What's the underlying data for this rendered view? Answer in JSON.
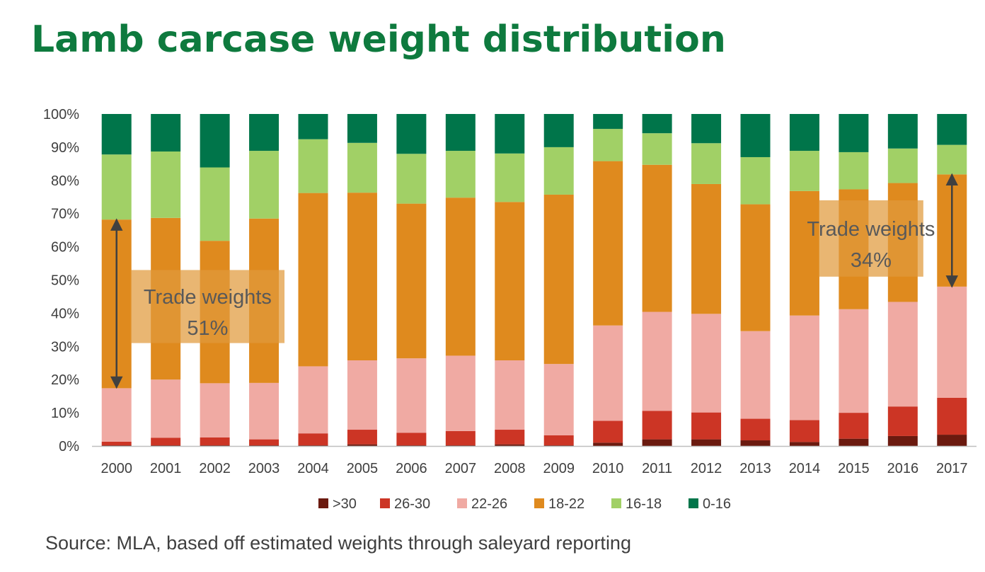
{
  "title": "Lamb carcase weight distribution",
  "source": "Source: MLA, based off estimated weights through saleyard reporting",
  "chart_data": {
    "type": "bar",
    "stacked": true,
    "percent_stacked": true,
    "categories": [
      "2000",
      "2001",
      "2002",
      "2003",
      "2004",
      "2005",
      "2006",
      "2007",
      "2008",
      "2009",
      "2010",
      "2011",
      "2012",
      "2013",
      "2014",
      "2015",
      "2016",
      "2017"
    ],
    "y_ticks": [
      "0%",
      "10%",
      "20%",
      "30%",
      "40%",
      "50%",
      "60%",
      "70%",
      "80%",
      "90%",
      "100%"
    ],
    "ylim": [
      0,
      100
    ],
    "legend_position": "bottom",
    "series": [
      {
        "name": ">30",
        "color": "#6b1a0f",
        "values": [
          0.2,
          0.2,
          0.2,
          0.2,
          0.2,
          0.5,
          0.2,
          0.2,
          0.5,
          0.2,
          1.0,
          2.0,
          2.0,
          1.7,
          1.2,
          2.2,
          3.0,
          3.4
        ]
      },
      {
        "name": "26-30",
        "color": "#cc3525",
        "values": [
          1.1,
          2.3,
          2.4,
          1.8,
          3.6,
          4.4,
          3.8,
          4.3,
          4.4,
          3.0,
          6.6,
          8.6,
          8.1,
          6.5,
          6.6,
          7.8,
          8.9,
          11.1
        ]
      },
      {
        "name": "22-26",
        "color": "#f0aaa3",
        "values": [
          16.1,
          17.5,
          16.3,
          17.0,
          20.2,
          20.9,
          22.4,
          22.7,
          20.9,
          21.5,
          28.7,
          29.8,
          29.7,
          26.4,
          31.5,
          31.2,
          31.5,
          33.5
        ]
      },
      {
        "name": "18-22",
        "color": "#df8a1e",
        "values": [
          50.8,
          48.7,
          42.9,
          49.5,
          52.2,
          50.5,
          46.6,
          47.6,
          47.7,
          51.0,
          49.5,
          44.3,
          39.1,
          38.2,
          37.5,
          36.1,
          35.8,
          33.8
        ]
      },
      {
        "name": "16-18",
        "color": "#a1d066",
        "values": [
          19.6,
          20.0,
          22.1,
          20.4,
          16.2,
          15.0,
          15.0,
          14.1,
          14.6,
          14.3,
          9.7,
          9.5,
          12.3,
          14.2,
          12.1,
          11.2,
          10.4,
          8.9
        ]
      },
      {
        "name": "0-16",
        "color": "#00754a",
        "values": [
          12.2,
          11.3,
          16.1,
          11.1,
          7.6,
          8.7,
          12.0,
          11.1,
          11.9,
          10.0,
          4.5,
          5.8,
          8.8,
          13.0,
          11.1,
          11.5,
          10.4,
          9.3
        ]
      }
    ],
    "annotations": [
      {
        "line1": "Trade weights",
        "line2": "51%",
        "from_year": "2000",
        "to_year": "2003",
        "band": [
          31,
          53
        ],
        "arrow_year": "2000",
        "arrow_range": [
          17.6,
          68.2
        ]
      },
      {
        "line1": "Trade weights",
        "line2": "34%",
        "from_year": "2014",
        "to_year": "2016",
        "band": [
          51,
          74
        ],
        "arrow_year": "2017",
        "arrow_range": [
          48,
          81.8
        ]
      }
    ]
  }
}
